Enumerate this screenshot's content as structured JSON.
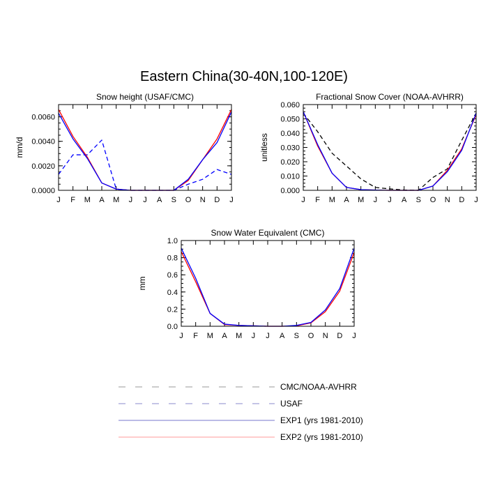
{
  "title": "Eastern China(30-40N,100-120E)",
  "colors": {
    "cmc_noaa": "#000000",
    "usaf": "#0000ff",
    "exp1": "#0000ff",
    "exp2": "#ff0000",
    "legend_cmc_noaa": "#999999",
    "legend_usaf": "#8888cc",
    "legend_exp1": "#7777cc",
    "legend_exp2": "#ff9999"
  },
  "legend": [
    {
      "label": "CMC/NOAA-AVHRR",
      "style": "dashed",
      "colorKey": "legend_cmc_noaa"
    },
    {
      "label": "USAF",
      "style": "dashed",
      "colorKey": "legend_usaf"
    },
    {
      "label": "EXP1 (yrs 1981-2010)",
      "style": "solid",
      "colorKey": "legend_exp1"
    },
    {
      "label": "EXP2 (yrs 1981-2010)",
      "style": "solid",
      "colorKey": "legend_exp2"
    }
  ],
  "chart_data": [
    {
      "type": "line",
      "title": "Snow height (USAF/CMC)",
      "ylabel": "mm/d",
      "categories": [
        "J",
        "F",
        "M",
        "A",
        "M",
        "J",
        "J",
        "A",
        "S",
        "O",
        "N",
        "D",
        "J"
      ],
      "ylim": [
        0,
        0.007
      ],
      "yticks": [
        0.0,
        0.002,
        0.004,
        0.006
      ],
      "yticklabels": [
        "0.0000",
        "0.0020",
        "0.0040",
        "0.0060"
      ],
      "yminor": 0.0005,
      "series": [
        {
          "key": "usaf",
          "style": "dashed",
          "values": [
            0.0013,
            0.0029,
            0.0029,
            0.0041,
            0.0001,
            0.0,
            0.0,
            0.0,
            0.0,
            0.0005,
            0.0009,
            0.0017,
            0.0013
          ]
        },
        {
          "key": "exp2",
          "style": "solid",
          "values": [
            0.0066,
            0.0044,
            0.0027,
            0.0006,
            0.0001,
            0.0,
            0.0,
            0.0,
            0.0,
            0.0008,
            0.0025,
            0.0042,
            0.0066
          ]
        },
        {
          "key": "exp1",
          "style": "solid",
          "values": [
            0.0063,
            0.0042,
            0.0026,
            0.0006,
            0.0001,
            0.0,
            0.0,
            0.0,
            0.0,
            0.0009,
            0.0025,
            0.0039,
            0.0064
          ]
        }
      ]
    },
    {
      "type": "line",
      "title": "Fractional Snow Cover (NOAA-AVHRR)",
      "ylabel": "unitless",
      "categories": [
        "J",
        "F",
        "M",
        "A",
        "M",
        "J",
        "J",
        "A",
        "S",
        "O",
        "N",
        "D",
        "J"
      ],
      "ylim": [
        0,
        0.06
      ],
      "yticks": [
        0.0,
        0.01,
        0.02,
        0.03,
        0.04,
        0.05,
        0.06
      ],
      "yticklabels": [
        "0.000",
        "0.010",
        "0.020",
        "0.030",
        "0.040",
        "0.050",
        "0.060"
      ],
      "yminor": 0.0025,
      "series": [
        {
          "key": "cmc_noaa",
          "style": "dashed",
          "values": [
            0.054,
            0.041,
            0.026,
            0.017,
            0.008,
            0.002,
            0.001,
            0.0002,
            0.0,
            0.009,
            0.015,
            0.035,
            0.054
          ]
        },
        {
          "key": "exp2",
          "style": "solid",
          "values": [
            0.055,
            0.031,
            0.012,
            0.002,
            0.0005,
            0.0002,
            0.0,
            0.0,
            0.0,
            0.003,
            0.014,
            0.029,
            0.053
          ]
        },
        {
          "key": "exp1",
          "style": "solid",
          "values": [
            0.055,
            0.032,
            0.012,
            0.002,
            0.0005,
            0.0002,
            0.0,
            0.0,
            0.0,
            0.003,
            0.013,
            0.028,
            0.054
          ]
        }
      ]
    },
    {
      "type": "line",
      "title": "Snow Water Equivalent (CMC)",
      "ylabel": "mm",
      "categories": [
        "J",
        "F",
        "M",
        "A",
        "M",
        "J",
        "J",
        "A",
        "S",
        "O",
        "N",
        "D",
        "J"
      ],
      "ylim": [
        0,
        1.0
      ],
      "yticks": [
        0.0,
        0.2,
        0.4,
        0.6,
        0.8,
        1.0
      ],
      "yticklabels": [
        "0.0",
        "0.2",
        "0.4",
        "0.6",
        "0.8",
        "1.0"
      ],
      "yminor": 0.05,
      "series": [
        {
          "key": "exp2",
          "style": "solid",
          "values": [
            0.87,
            0.52,
            0.15,
            0.02,
            0.01,
            0.005,
            0.0,
            0.0,
            0.005,
            0.04,
            0.17,
            0.41,
            0.86
          ]
        },
        {
          "key": "exp1",
          "style": "solid",
          "values": [
            0.91,
            0.56,
            0.15,
            0.025,
            0.01,
            0.005,
            0.0,
            0.0,
            0.01,
            0.045,
            0.19,
            0.44,
            0.91
          ]
        }
      ]
    }
  ]
}
